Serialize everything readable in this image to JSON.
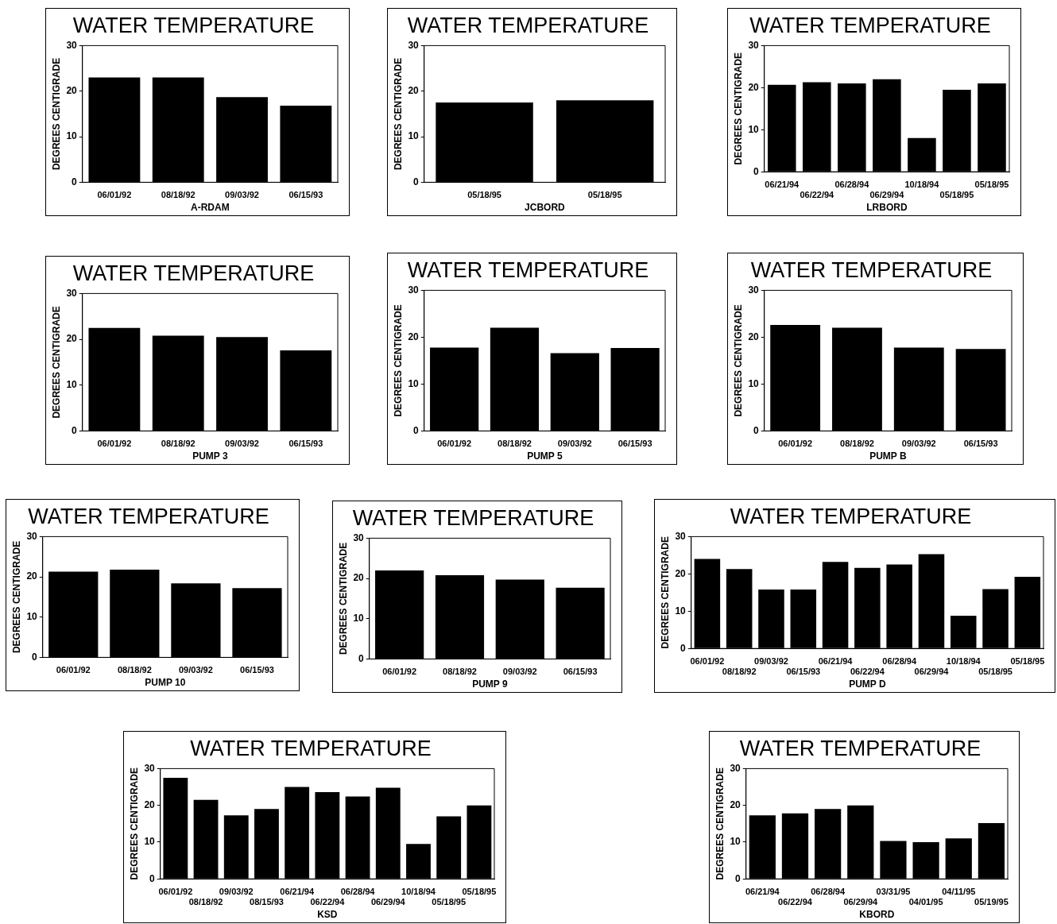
{
  "chart_data": [
    {
      "type": "bar",
      "title": "WATER TEMPERATURE",
      "xlabel": "A-RDAM",
      "ylabel": "DEGREES CENTIGRADE",
      "categories": [
        "06/01/92",
        "08/18/92",
        "09/03/92",
        "06/15/93"
      ],
      "values": [
        23,
        23,
        18.7,
        16.8
      ],
      "color": "#000000",
      "ylim": [
        0,
        30
      ],
      "yticks": [
        0,
        10,
        20,
        30
      ]
    },
    {
      "type": "bar",
      "title": "WATER TEMPERATURE",
      "xlabel": "JCBORD",
      "ylabel": "DEGREES CENTIGRADE",
      "categories": [
        "05/18/95",
        "05/18/95"
      ],
      "values": [
        17.5,
        18
      ],
      "color": "#000000",
      "ylim": [
        0,
        30
      ],
      "yticks": [
        0,
        10,
        20,
        30
      ]
    },
    {
      "type": "bar",
      "title": "WATER TEMPERATURE",
      "xlabel": "LRBORD",
      "ylabel": "DEGREES CENTIGRADE",
      "categories": [
        "06/21/94",
        "06/22/94",
        "06/28/94",
        "06/29/94",
        "10/18/94",
        "05/18/95",
        "05/18/95"
      ],
      "values": [
        20.7,
        21.3,
        21,
        22,
        8,
        19.5,
        21
      ],
      "color": "#000000",
      "ylim": [
        0,
        30
      ],
      "yticks": [
        0,
        10,
        20,
        30
      ]
    },
    {
      "type": "bar",
      "title": "WATER TEMPERATURE",
      "xlabel": "PUMP 3",
      "ylabel": "DEGREES CENTIGRADE",
      "categories": [
        "06/01/92",
        "08/18/92",
        "09/03/92",
        "06/15/93"
      ],
      "values": [
        22.5,
        20.8,
        20.5,
        17.6
      ],
      "color": "#000000",
      "ylim": [
        0,
        30
      ],
      "yticks": [
        0,
        10,
        20,
        30
      ]
    },
    {
      "type": "bar",
      "title": "WATER TEMPERATURE",
      "xlabel": "PUMP 5",
      "ylabel": "DEGREES CENTIGRADE",
      "categories": [
        "06/01/92",
        "08/18/92",
        "09/03/92",
        "06/15/93"
      ],
      "values": [
        17.8,
        22,
        16.6,
        17.7
      ],
      "color": "#000000",
      "ylim": [
        0,
        30
      ],
      "yticks": [
        0,
        10,
        20,
        30
      ]
    },
    {
      "type": "bar",
      "title": "WATER TEMPERATURE",
      "xlabel": "PUMP B",
      "ylabel": "DEGREES CENTIGRADE",
      "categories": [
        "06/01/92",
        "08/18/92",
        "09/03/92",
        "06/15/93"
      ],
      "values": [
        22.6,
        22,
        17.8,
        17.5
      ],
      "color": "#000000",
      "ylim": [
        0,
        30
      ],
      "yticks": [
        0,
        10,
        20,
        30
      ]
    },
    {
      "type": "bar",
      "title": "WATER TEMPERATURE",
      "xlabel": "PUMP 10",
      "ylabel": "DEGREES CENTIGRADE",
      "categories": [
        "06/01/92",
        "08/18/92",
        "09/03/92",
        "06/15/93"
      ],
      "values": [
        21.3,
        21.8,
        18.4,
        17.2
      ],
      "color": "#000000",
      "ylim": [
        0,
        30
      ],
      "yticks": [
        0,
        10,
        20,
        30
      ]
    },
    {
      "type": "bar",
      "title": "WATER TEMPERATURE",
      "xlabel": "PUMP 9",
      "ylabel": "DEGREES CENTIGRADE",
      "categories": [
        "06/01/92",
        "08/18/92",
        "09/03/92",
        "06/15/93"
      ],
      "values": [
        22,
        20.8,
        19.7,
        17.7
      ],
      "color": "#000000",
      "ylim": [
        0,
        30
      ],
      "yticks": [
        0,
        10,
        20,
        30
      ]
    },
    {
      "type": "bar",
      "title": "WATER TEMPERATURE",
      "xlabel": "PUMP D",
      "ylabel": "DEGREES CENTIGRADE",
      "categories": [
        "06/01/92",
        "08/18/92",
        "09/03/92",
        "06/15/93",
        "06/21/94",
        "06/22/94",
        "06/28/94",
        "06/29/94",
        "10/18/94",
        "05/18/95",
        "05/18/95"
      ],
      "values": [
        24,
        21.3,
        15.8,
        15.8,
        23.2,
        21.6,
        22.5,
        25.3,
        8.8,
        15.9,
        19.2
      ],
      "color": "#000000",
      "ylim": [
        0,
        30
      ],
      "yticks": [
        0,
        10,
        20,
        30
      ]
    },
    {
      "type": "bar",
      "title": "WATER TEMPERATURE",
      "xlabel": "KSD",
      "ylabel": "DEGREES CENTIGRADE",
      "categories": [
        "06/01/92",
        "08/18/92",
        "09/03/92",
        "08/15/93",
        "06/21/94",
        "06/22/94",
        "06/28/94",
        "06/29/94",
        "10/18/94",
        "05/18/95",
        "05/18/95"
      ],
      "values": [
        27.5,
        21.5,
        17.3,
        19,
        25,
        23.6,
        22.4,
        24.8,
        9.5,
        17,
        20
      ],
      "color": "#000000",
      "ylim": [
        0,
        30
      ],
      "yticks": [
        0,
        10,
        20,
        30
      ]
    },
    {
      "type": "bar",
      "title": "WATER TEMPERATURE",
      "xlabel": "KBORD",
      "ylabel": "DEGREES CENTIGRADE",
      "categories": [
        "06/21/94",
        "06/22/94",
        "06/28/94",
        "06/29/94",
        "03/31/95",
        "04/01/95",
        "04/11/95",
        "05/19/95"
      ],
      "values": [
        17.3,
        17.8,
        19,
        20,
        10.3,
        10,
        11,
        15.2
      ],
      "color": "#000000",
      "ylim": [
        0,
        30
      ],
      "yticks": [
        0,
        10,
        20,
        30
      ]
    }
  ]
}
